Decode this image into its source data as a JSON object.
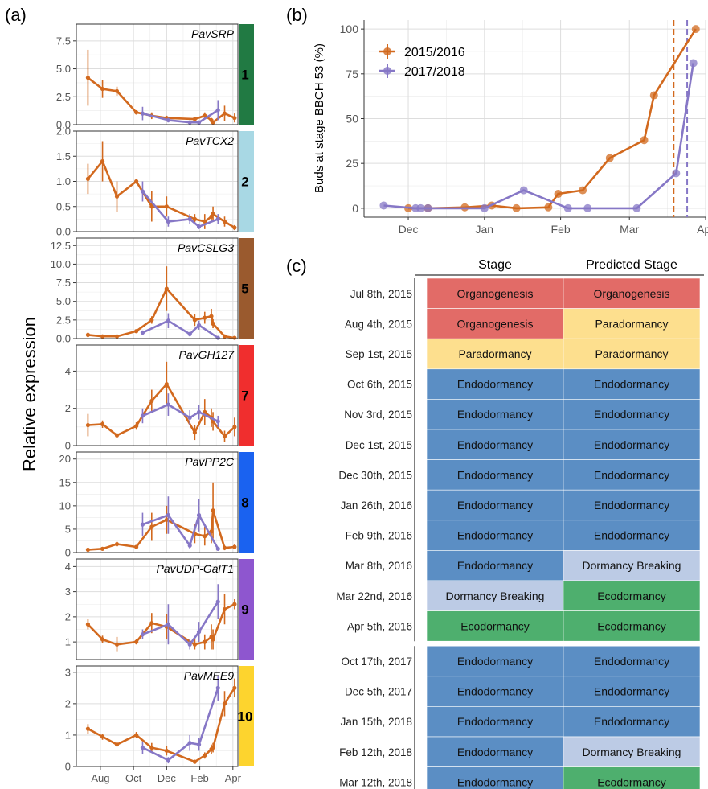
{
  "labels": {
    "a": "(a)",
    "b": "(b)",
    "c": "(c)"
  },
  "colors": {
    "s2015": "#D2691E",
    "s2017": "#8677C6",
    "grid": "#ebebeb",
    "Organogenesis": "#E26B67",
    "Paradormancy": "#FDDF8E",
    "Endodormancy": "#5B8EC4",
    "Dormancy Breaking": "#BCCBE5",
    "Ecodormancy": "#4EAF6E"
  },
  "chart_data": [
    {
      "type": "line",
      "panel": "(a)",
      "ylabel": "Relative expression",
      "x_ticks": [
        "Aug",
        "Oct",
        "Dec",
        "Feb",
        "Apr"
      ],
      "x_tick_months": [
        1,
        3,
        5,
        7,
        9
      ],
      "xlim_months": [
        -0.45,
        9.3
      ],
      "note": "x values in months since July 1 (0 = Jul)",
      "facets": [
        {
          "gene": "PavSRP",
          "cluster": "1",
          "cluster_color": "#217A43",
          "ylim": [
            0,
            9.0
          ],
          "yticks": [
            0.0,
            2.5,
            5.0,
            7.5
          ],
          "series": [
            {
              "name": "2015/2016",
              "x": [
                0.25,
                1.13,
                2.0,
                3.17,
                4.1,
                5.0,
                6.7,
                7.3,
                7.7,
                7.8,
                8.5,
                9.1
              ],
              "y": [
                4.2,
                3.2,
                3.0,
                1.1,
                0.8,
                0.6,
                0.5,
                0.8,
                0.4,
                0.2,
                1.0,
                0.6
              ],
              "err": [
                2.5,
                0.8,
                0.4,
                0.2,
                0.3,
                0.2,
                0.2,
                0.3,
                0.2,
                0.1,
                0.7,
                0.4
              ]
            },
            {
              "name": "2017/2018",
              "x": [
                3.55,
                5.1,
                6.4,
                6.95,
                8.1
              ],
              "y": [
                1.0,
                0.4,
                0.2,
                0.2,
                1.3
              ],
              "err": [
                0.6,
                0.2,
                0.1,
                0.1,
                0.9
              ]
            }
          ]
        },
        {
          "gene": "PavTCX2",
          "cluster": "2",
          "cluster_color": "#A8D8E4",
          "ylim": [
            0,
            2.0
          ],
          "yticks": [
            0.0,
            0.5,
            1.0,
            1.5,
            2.0
          ],
          "series": [
            {
              "name": "2015/2016",
              "x": [
                0.25,
                1.13,
                2.0,
                3.17,
                4.1,
                5.0,
                6.7,
                7.3,
                7.7,
                7.8,
                8.5,
                9.1
              ],
              "y": [
                1.05,
                1.4,
                0.7,
                1.0,
                0.5,
                0.5,
                0.25,
                0.2,
                0.3,
                0.35,
                0.2,
                0.08
              ],
              "err": [
                0.3,
                0.4,
                0.3,
                0.05,
                0.3,
                0.2,
                0.1,
                0.15,
                0.1,
                0.15,
                0.1,
                0.05
              ]
            },
            {
              "name": "2017/2018",
              "x": [
                3.55,
                5.1,
                6.4,
                6.95,
                8.1
              ],
              "y": [
                0.8,
                0.2,
                0.25,
                0.1,
                0.25
              ],
              "err": [
                0.2,
                0.1,
                0.1,
                0.05,
                0.1
              ]
            }
          ]
        },
        {
          "gene": "PavCSLG3",
          "cluster": "5",
          "cluster_color": "#9A5A2E",
          "ylim": [
            0,
            13.5
          ],
          "yticks": [
            0.0,
            2.5,
            5.0,
            7.5,
            10.0,
            12.5
          ],
          "series": [
            {
              "name": "2015/2016",
              "x": [
                0.25,
                1.13,
                2.0,
                3.17,
                4.1,
                5.0,
                6.7,
                7.3,
                7.7,
                7.8,
                8.5,
                9.1
              ],
              "y": [
                0.5,
                0.3,
                0.3,
                1.0,
                2.5,
                6.7,
                2.5,
                2.8,
                3.0,
                2.0,
                0.3,
                0.1
              ],
              "err": [
                0.3,
                0.1,
                0.1,
                0.2,
                0.5,
                3.0,
                0.8,
                0.8,
                1.0,
                0.6,
                0.2,
                0.05
              ]
            },
            {
              "name": "2017/2018",
              "x": [
                3.55,
                5.1,
                6.4,
                6.95,
                8.1
              ],
              "y": [
                0.8,
                2.4,
                0.6,
                1.8,
                0.1
              ],
              "err": [
                0.3,
                1.0,
                0.3,
                0.6,
                0.05
              ]
            }
          ]
        },
        {
          "gene": "PavGH127",
          "cluster": "7",
          "cluster_color": "#F02E2E",
          "ylim": [
            0,
            5.4
          ],
          "yticks": [
            0,
            2,
            4
          ],
          "series": [
            {
              "name": "2015/2016",
              "x": [
                0.25,
                1.13,
                2.0,
                3.17,
                4.1,
                5.0,
                6.7,
                7.3,
                7.7,
                7.8,
                8.5,
                9.1
              ],
              "y": [
                1.1,
                1.15,
                0.55,
                1.05,
                2.4,
                3.3,
                0.7,
                1.8,
                1.5,
                1.3,
                0.5,
                1.0
              ],
              "err": [
                0.6,
                0.2,
                0.1,
                0.2,
                0.6,
                1.2,
                0.4,
                0.7,
                0.5,
                0.5,
                0.3,
                0.5
              ]
            },
            {
              "name": "2017/2018",
              "x": [
                3.55,
                5.1,
                6.4,
                6.95,
                8.1
              ],
              "y": [
                1.6,
                2.2,
                1.5,
                1.8,
                1.3
              ],
              "err": [
                0.4,
                0.6,
                0.4,
                0.4,
                0.3
              ]
            }
          ]
        },
        {
          "gene": "PavPP2C",
          "cluster": "8",
          "cluster_color": "#1A62F0",
          "ylim": [
            0,
            21.5
          ],
          "yticks": [
            0,
            5,
            10,
            15,
            20
          ],
          "series": [
            {
              "name": "2015/2016",
              "x": [
                0.25,
                1.13,
                2.0,
                3.17,
                4.1,
                5.0,
                6.7,
                7.3,
                7.7,
                7.8,
                8.5,
                9.1
              ],
              "y": [
                0.6,
                0.8,
                1.8,
                1.2,
                5.5,
                7.0,
                4.0,
                3.5,
                4.5,
                9.0,
                1.0,
                1.2
              ],
              "err": [
                0.2,
                0.2,
                0.5,
                0.3,
                3.0,
                3.0,
                2.0,
                2.0,
                2.5,
                6.0,
                0.5,
                0.5
              ]
            },
            {
              "name": "2017/2018",
              "x": [
                3.55,
                5.1,
                6.4,
                6.95,
                8.1
              ],
              "y": [
                6.0,
                8.0,
                1.5,
                8.0,
                0.8
              ],
              "err": [
                2.5,
                4.0,
                0.8,
                3.5,
                0.4
              ]
            }
          ]
        },
        {
          "gene": "PavUDP-GalT1",
          "cluster": "9",
          "cluster_color": "#8E56CF",
          "ylim": [
            0.3,
            4.3
          ],
          "yticks": [
            1,
            2,
            3,
            4
          ],
          "series": [
            {
              "name": "2015/2016",
              "x": [
                0.25,
                1.13,
                2.0,
                3.17,
                4.1,
                5.0,
                6.7,
                7.3,
                7.7,
                7.8,
                8.5,
                9.1
              ],
              "y": [
                1.7,
                1.1,
                0.9,
                1.0,
                1.75,
                1.6,
                0.9,
                1.0,
                1.2,
                1.1,
                2.3,
                2.5
              ],
              "err": [
                0.2,
                0.15,
                0.3,
                0.1,
                0.4,
                0.5,
                0.2,
                0.3,
                0.5,
                0.4,
                0.6,
                0.2
              ]
            },
            {
              "name": "2017/2018",
              "x": [
                3.55,
                5.1,
                6.4,
                6.95,
                8.1
              ],
              "y": [
                1.3,
                1.7,
                0.9,
                1.4,
                2.6
              ],
              "err": [
                0.2,
                0.8,
                0.2,
                0.4,
                0.7
              ]
            }
          ]
        },
        {
          "gene": "PavMEE9",
          "cluster": "10",
          "cluster_color": "#FDD42E",
          "ylim": [
            0,
            3.2
          ],
          "yticks": [
            0,
            1,
            2,
            3
          ],
          "series": [
            {
              "name": "2015/2016",
              "x": [
                0.25,
                1.13,
                2.0,
                3.17,
                4.1,
                5.0,
                6.7,
                7.3,
                7.7,
                7.8,
                8.5,
                9.1
              ],
              "y": [
                1.2,
                0.95,
                0.7,
                1.0,
                0.6,
                0.5,
                0.15,
                0.35,
                0.55,
                0.6,
                2.0,
                2.5
              ],
              "err": [
                0.15,
                0.1,
                0.05,
                0.1,
                0.15,
                0.15,
                0.05,
                0.1,
                0.15,
                0.15,
                0.4,
                0.3
              ]
            },
            {
              "name": "2017/2018",
              "x": [
                3.55,
                5.1,
                6.4,
                6.95,
                8.1
              ],
              "y": [
                0.6,
                0.2,
                0.75,
                0.7,
                2.5
              ],
              "err": [
                0.2,
                0.1,
                0.25,
                0.2,
                0.4
              ]
            }
          ]
        }
      ]
    },
    {
      "type": "line",
      "panel": "(b)",
      "ylabel": "Buds at stage BBCH 53 (%)",
      "xlim_days": [
        -8,
        131
      ],
      "ylim": [
        -5,
        105
      ],
      "yticks": [
        0,
        25,
        50,
        75,
        100
      ],
      "x_ticks": [
        "Dec",
        "Jan",
        "Feb",
        "Mar",
        "Apr"
      ],
      "x_tick_days": [
        10,
        41,
        72,
        100,
        131
      ],
      "note": "x values in days since Nov 20",
      "legend": "top-left",
      "series": [
        {
          "name": "2015/2016",
          "x": [
            10,
            18,
            33,
            44,
            54,
            67,
            71,
            81,
            92,
            106,
            110,
            127
          ],
          "y": [
            0,
            0,
            0.5,
            1.5,
            0,
            0.5,
            8,
            10,
            28,
            38,
            63,
            100
          ]
        },
        {
          "name": "2017/2018",
          "x": [
            0,
            13,
            15,
            18,
            41,
            57,
            75,
            83,
            103,
            126,
            119
          ],
          "y": [
            1.5,
            0,
            0,
            0,
            0,
            10,
            0,
            0,
            0,
            81,
            19.5
          ]
        }
      ],
      "vlines": [
        {
          "x": 118,
          "series": "2015/2016"
        },
        {
          "x": 123.5,
          "series": "2017/2018"
        }
      ]
    }
  ],
  "panel_c": {
    "headers": [
      "Stage",
      "Predicted Stage"
    ],
    "rows": [
      {
        "date": "Jul 8th, 2015",
        "stage": "Organogenesis",
        "pred": "Organogenesis"
      },
      {
        "date": "Aug 4th, 2015",
        "stage": "Organogenesis",
        "pred": "Paradormancy"
      },
      {
        "date": "Sep 1st, 2015",
        "stage": "Paradormancy",
        "pred": "Paradormancy"
      },
      {
        "date": "Oct 6th, 2015",
        "stage": "Endodormancy",
        "pred": "Endodormancy"
      },
      {
        "date": "Nov 3rd, 2015",
        "stage": "Endodormancy",
        "pred": "Endodormancy"
      },
      {
        "date": "Dec 1st, 2015",
        "stage": "Endodormancy",
        "pred": "Endodormancy"
      },
      {
        "date": "Dec 30th, 2015",
        "stage": "Endodormancy",
        "pred": "Endodormancy"
      },
      {
        "date": "Jan 26th, 2016",
        "stage": "Endodormancy",
        "pred": "Endodormancy"
      },
      {
        "date": "Feb 9th, 2016",
        "stage": "Endodormancy",
        "pred": "Endodormancy"
      },
      {
        "date": "Mar 8th, 2016",
        "stage": "Endodormancy",
        "pred": "Dormancy Breaking"
      },
      {
        "date": "Mar 22nd, 2016",
        "stage": "Dormancy Breaking",
        "pred": "Ecodormancy"
      },
      {
        "date": "Apr 5th, 2016",
        "stage": "Ecodormancy",
        "pred": "Ecodormancy"
      },
      {
        "date": "Oct 17th, 2017",
        "stage": "Endodormancy",
        "pred": "Endodormancy"
      },
      {
        "date": "Dec 5th, 2017",
        "stage": "Endodormancy",
        "pred": "Endodormancy"
      },
      {
        "date": "Jan 15th, 2018",
        "stage": "Endodormancy",
        "pred": "Endodormancy"
      },
      {
        "date": "Feb 12th, 2018",
        "stage": "Endodormancy",
        "pred": "Dormancy Breaking"
      },
      {
        "date": "Mar 12th, 2018",
        "stage": "Endodormancy",
        "pred": "Ecodormancy"
      }
    ]
  }
}
